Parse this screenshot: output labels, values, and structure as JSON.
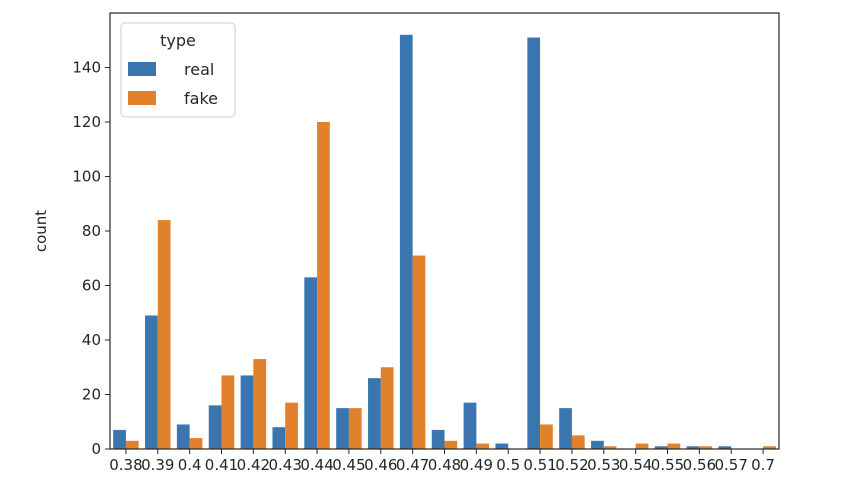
{
  "chart_data": {
    "type": "bar",
    "title": "",
    "xlabel": "",
    "ylabel": "count",
    "categories": [
      "0.38",
      "0.39",
      "0.4",
      "0.41",
      "0.42",
      "0.43",
      "0.44",
      "0.45",
      "0.46",
      "0.47",
      "0.48",
      "0.49",
      "0.5",
      "0.51",
      "0.52",
      "0.53",
      "0.54",
      "0.55",
      "0.56",
      "0.57",
      "0.7"
    ],
    "series": [
      {
        "name": "real",
        "color": "#3a75af",
        "values": [
          7,
          49,
          9,
          16,
          27,
          8,
          63,
          15,
          26,
          152,
          7,
          17,
          2,
          151,
          15,
          3,
          0,
          1,
          1,
          1,
          0
        ]
      },
      {
        "name": "fake",
        "color": "#e1812b",
        "values": [
          3,
          84,
          4,
          27,
          33,
          17,
          120,
          15,
          30,
          71,
          3,
          2,
          0,
          9,
          5,
          1,
          2,
          2,
          1,
          0,
          1
        ]
      }
    ],
    "ylim": [
      0,
      160
    ],
    "yticks": [
      "0",
      "20",
      "40",
      "60",
      "80",
      "100",
      "120",
      "140"
    ],
    "grid": false,
    "legend": {
      "title": "type",
      "placement": "top-left"
    }
  }
}
